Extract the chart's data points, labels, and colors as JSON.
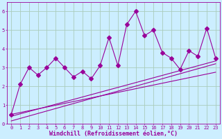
{
  "xlabel": "Windchill (Refroidissement éolien,°C)",
  "ylabel": "",
  "bg_color": "#cceeff",
  "line_color": "#990099",
  "grid_color": "#aaccbb",
  "xlim": [
    -0.5,
    23.5
  ],
  "ylim": [
    0,
    6.5
  ],
  "xticks": [
    0,
    1,
    2,
    3,
    4,
    5,
    6,
    7,
    8,
    9,
    10,
    11,
    12,
    13,
    14,
    15,
    16,
    17,
    18,
    19,
    20,
    21,
    22,
    23
  ],
  "yticks": [
    0,
    1,
    2,
    3,
    4,
    5,
    6
  ],
  "scatter_x": [
    0,
    1,
    2,
    3,
    4,
    5,
    6,
    7,
    8,
    9,
    10,
    11,
    12,
    13,
    14,
    15,
    16,
    17,
    18,
    19,
    20,
    21,
    22,
    23
  ],
  "scatter_y": [
    0.5,
    2.1,
    3.0,
    2.6,
    3.0,
    3.5,
    3.0,
    2.5,
    2.8,
    2.4,
    3.1,
    4.6,
    3.1,
    5.3,
    6.0,
    4.7,
    5.0,
    3.8,
    3.5,
    2.9,
    3.9,
    3.6,
    5.1,
    3.5
  ],
  "line1_x": [
    0,
    23
  ],
  "line1_y": [
    0.15,
    3.2
  ],
  "line2_x": [
    0,
    23
  ],
  "line2_y": [
    0.4,
    3.35
  ],
  "line3_x": [
    0,
    23
  ],
  "line3_y": [
    0.5,
    2.75
  ],
  "marker": "D",
  "marker_size": 3,
  "tick_fontsize": 5,
  "xlabel_fontsize": 6,
  "linewidth": 0.8
}
